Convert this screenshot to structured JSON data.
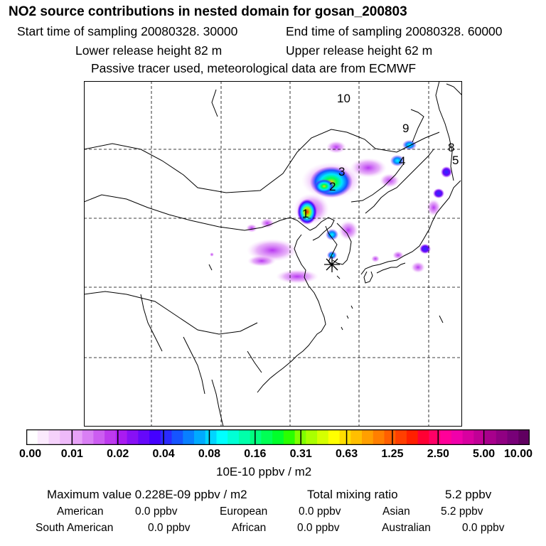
{
  "header": {
    "title": "NO2 source contributions in nested domain for gosan_200803",
    "start": "Start time of sampling 20080328. 30000",
    "end": "End time of sampling 20080328. 60000",
    "lower": "Lower release height   82 m",
    "upper": "Upper release height   62 m",
    "note": "Passive tracer used, meteorological data are from ECMWF"
  },
  "map": {
    "source_labels": [
      "1",
      "2",
      "3",
      "4",
      "5",
      "8",
      "9",
      "10"
    ],
    "receptor_symbol": "star-marker"
  },
  "colorbar": {
    "ticks": [
      "0.00",
      "0.01",
      "0.02",
      "0.04",
      "0.08",
      "0.16",
      "0.31",
      "0.63",
      "1.25",
      "2.50",
      "5.00",
      "10.00"
    ],
    "colors": [
      "#ffffff",
      "#fbeafd",
      "#f5d2fb",
      "#eebaf9",
      "#e7a2f7",
      "#d97ff4",
      "#cc5df1",
      "#bd3aee",
      "#a91bf1",
      "#8810f5",
      "#6608fa",
      "#4400ff",
      "#2a2aff",
      "#1554ff",
      "#087fff",
      "#00aaff",
      "#00d5ff",
      "#00ffff",
      "#00ffd5",
      "#00ffaa",
      "#00ff7f",
      "#00ff54",
      "#00ff2a",
      "#2aff00",
      "#7fff00",
      "#aaff00",
      "#d5ff00",
      "#ffff00",
      "#ffdf00",
      "#ffbf00",
      "#ff9f00",
      "#ff7f00",
      "#ff5f00",
      "#ff3f00",
      "#ff1f00",
      "#ff0033",
      "#ff0066",
      "#ff0099",
      "#f000aa",
      "#d800a0",
      "#c00096",
      "#a8008c",
      "#900082",
      "#780078",
      "#600060"
    ],
    "unit": "10E-10 ppbv / m2"
  },
  "stats": {
    "max": "Maximum value  0.228E-09 ppbv / m2",
    "total_label": "Total mixing ratio",
    "total_value": "5.2 ppbv",
    "regions": [
      {
        "name": "American",
        "value": "0.0 ppbv"
      },
      {
        "name": "European",
        "value": "0.0 ppbv"
      },
      {
        "name": "Asian",
        "value": "5.2 ppbv"
      },
      {
        "name": "South American",
        "value": "0.0 ppbv"
      },
      {
        "name": "African",
        "value": "0.0 ppbv"
      },
      {
        "name": "Australian",
        "value": "0.0 ppbv"
      }
    ]
  }
}
